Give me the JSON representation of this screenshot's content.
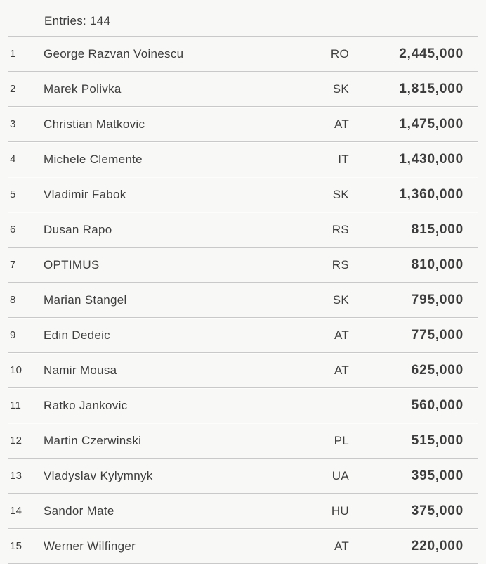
{
  "header": {
    "entries": "Entries: 144"
  },
  "table": {
    "rows": [
      {
        "rank": "1",
        "name": "George Razvan Voinescu",
        "country": "RO",
        "count": "2,445,000"
      },
      {
        "rank": "2",
        "name": "Marek Polivka",
        "country": "SK",
        "count": "1,815,000"
      },
      {
        "rank": "3",
        "name": "Christian Matkovic",
        "country": "AT",
        "count": "1,475,000"
      },
      {
        "rank": "4",
        "name": "Michele Clemente",
        "country": "IT",
        "count": "1,430,000"
      },
      {
        "rank": "5",
        "name": "Vladimir Fabok",
        "country": "SK",
        "count": "1,360,000"
      },
      {
        "rank": "6",
        "name": "Dusan Rapo",
        "country": "RS",
        "count": "815,000"
      },
      {
        "rank": "7",
        "name": "OPTIMUS",
        "country": "RS",
        "count": "810,000"
      },
      {
        "rank": "8",
        "name": "Marian Stangel",
        "country": "SK",
        "count": "795,000"
      },
      {
        "rank": "9",
        "name": "Edin Dedeic",
        "country": "AT",
        "count": "775,000"
      },
      {
        "rank": "10",
        "name": "Namir Mousa",
        "country": "AT",
        "count": "625,000"
      },
      {
        "rank": "11",
        "name": "Ratko Jankovic",
        "country": "",
        "count": "560,000"
      },
      {
        "rank": "12",
        "name": "Martin Czerwinski",
        "country": "PL",
        "count": "515,000"
      },
      {
        "rank": "13",
        "name": "Vladyslav Kylymnyk",
        "country": "UA",
        "count": "395,000"
      },
      {
        "rank": "14",
        "name": "Sandor Mate",
        "country": "HU",
        "count": "375,000"
      },
      {
        "rank": "15",
        "name": "Werner Wilfinger",
        "country": "AT",
        "count": "220,000"
      }
    ]
  },
  "colors": {
    "background": "#f8f8f6",
    "text": "#3d3d3d",
    "divider": "#c9c9c9"
  }
}
